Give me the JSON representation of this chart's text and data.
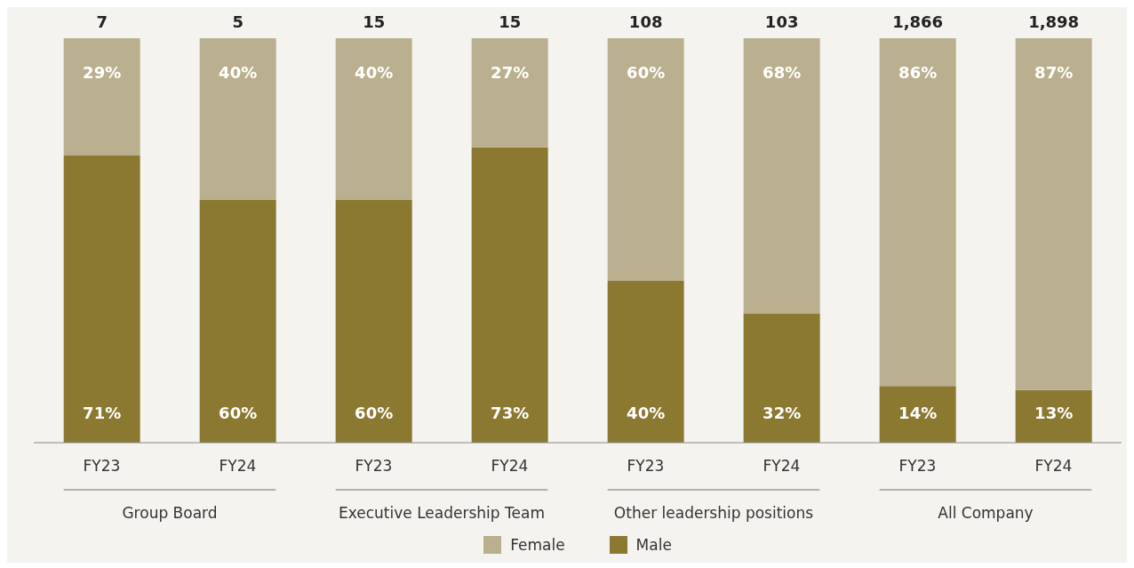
{
  "chart_data": {
    "type": "bar",
    "stacked": true,
    "categories": [
      "FY23",
      "FY24",
      "FY23",
      "FY24",
      "FY23",
      "FY24",
      "FY23",
      "FY24"
    ],
    "series": [
      {
        "name": "Male",
        "color": "#8b7931",
        "values": [
          71,
          60,
          60,
          73,
          40,
          32,
          14,
          13
        ],
        "value_labels": [
          "71%",
          "60%",
          "60%",
          "73%",
          "40%",
          "32%",
          "14%",
          "13%"
        ]
      },
      {
        "name": "Female",
        "color": "#bab08f",
        "values": [
          29,
          40,
          40,
          27,
          60,
          68,
          86,
          87
        ],
        "value_labels": [
          "29%",
          "40%",
          "40%",
          "27%",
          "60%",
          "68%",
          "86%",
          "87%"
        ]
      }
    ],
    "annotations": [
      "7",
      "5",
      "15",
      "15",
      "108",
      "103",
      "1,866",
      "1,898",
      "Group Board",
      "Executive Leadership Team",
      "Other leadership positions",
      "All Company"
    ],
    "ylim": [
      0,
      100
    ],
    "tick_labels": "x",
    "legend": "bottom"
  }
}
